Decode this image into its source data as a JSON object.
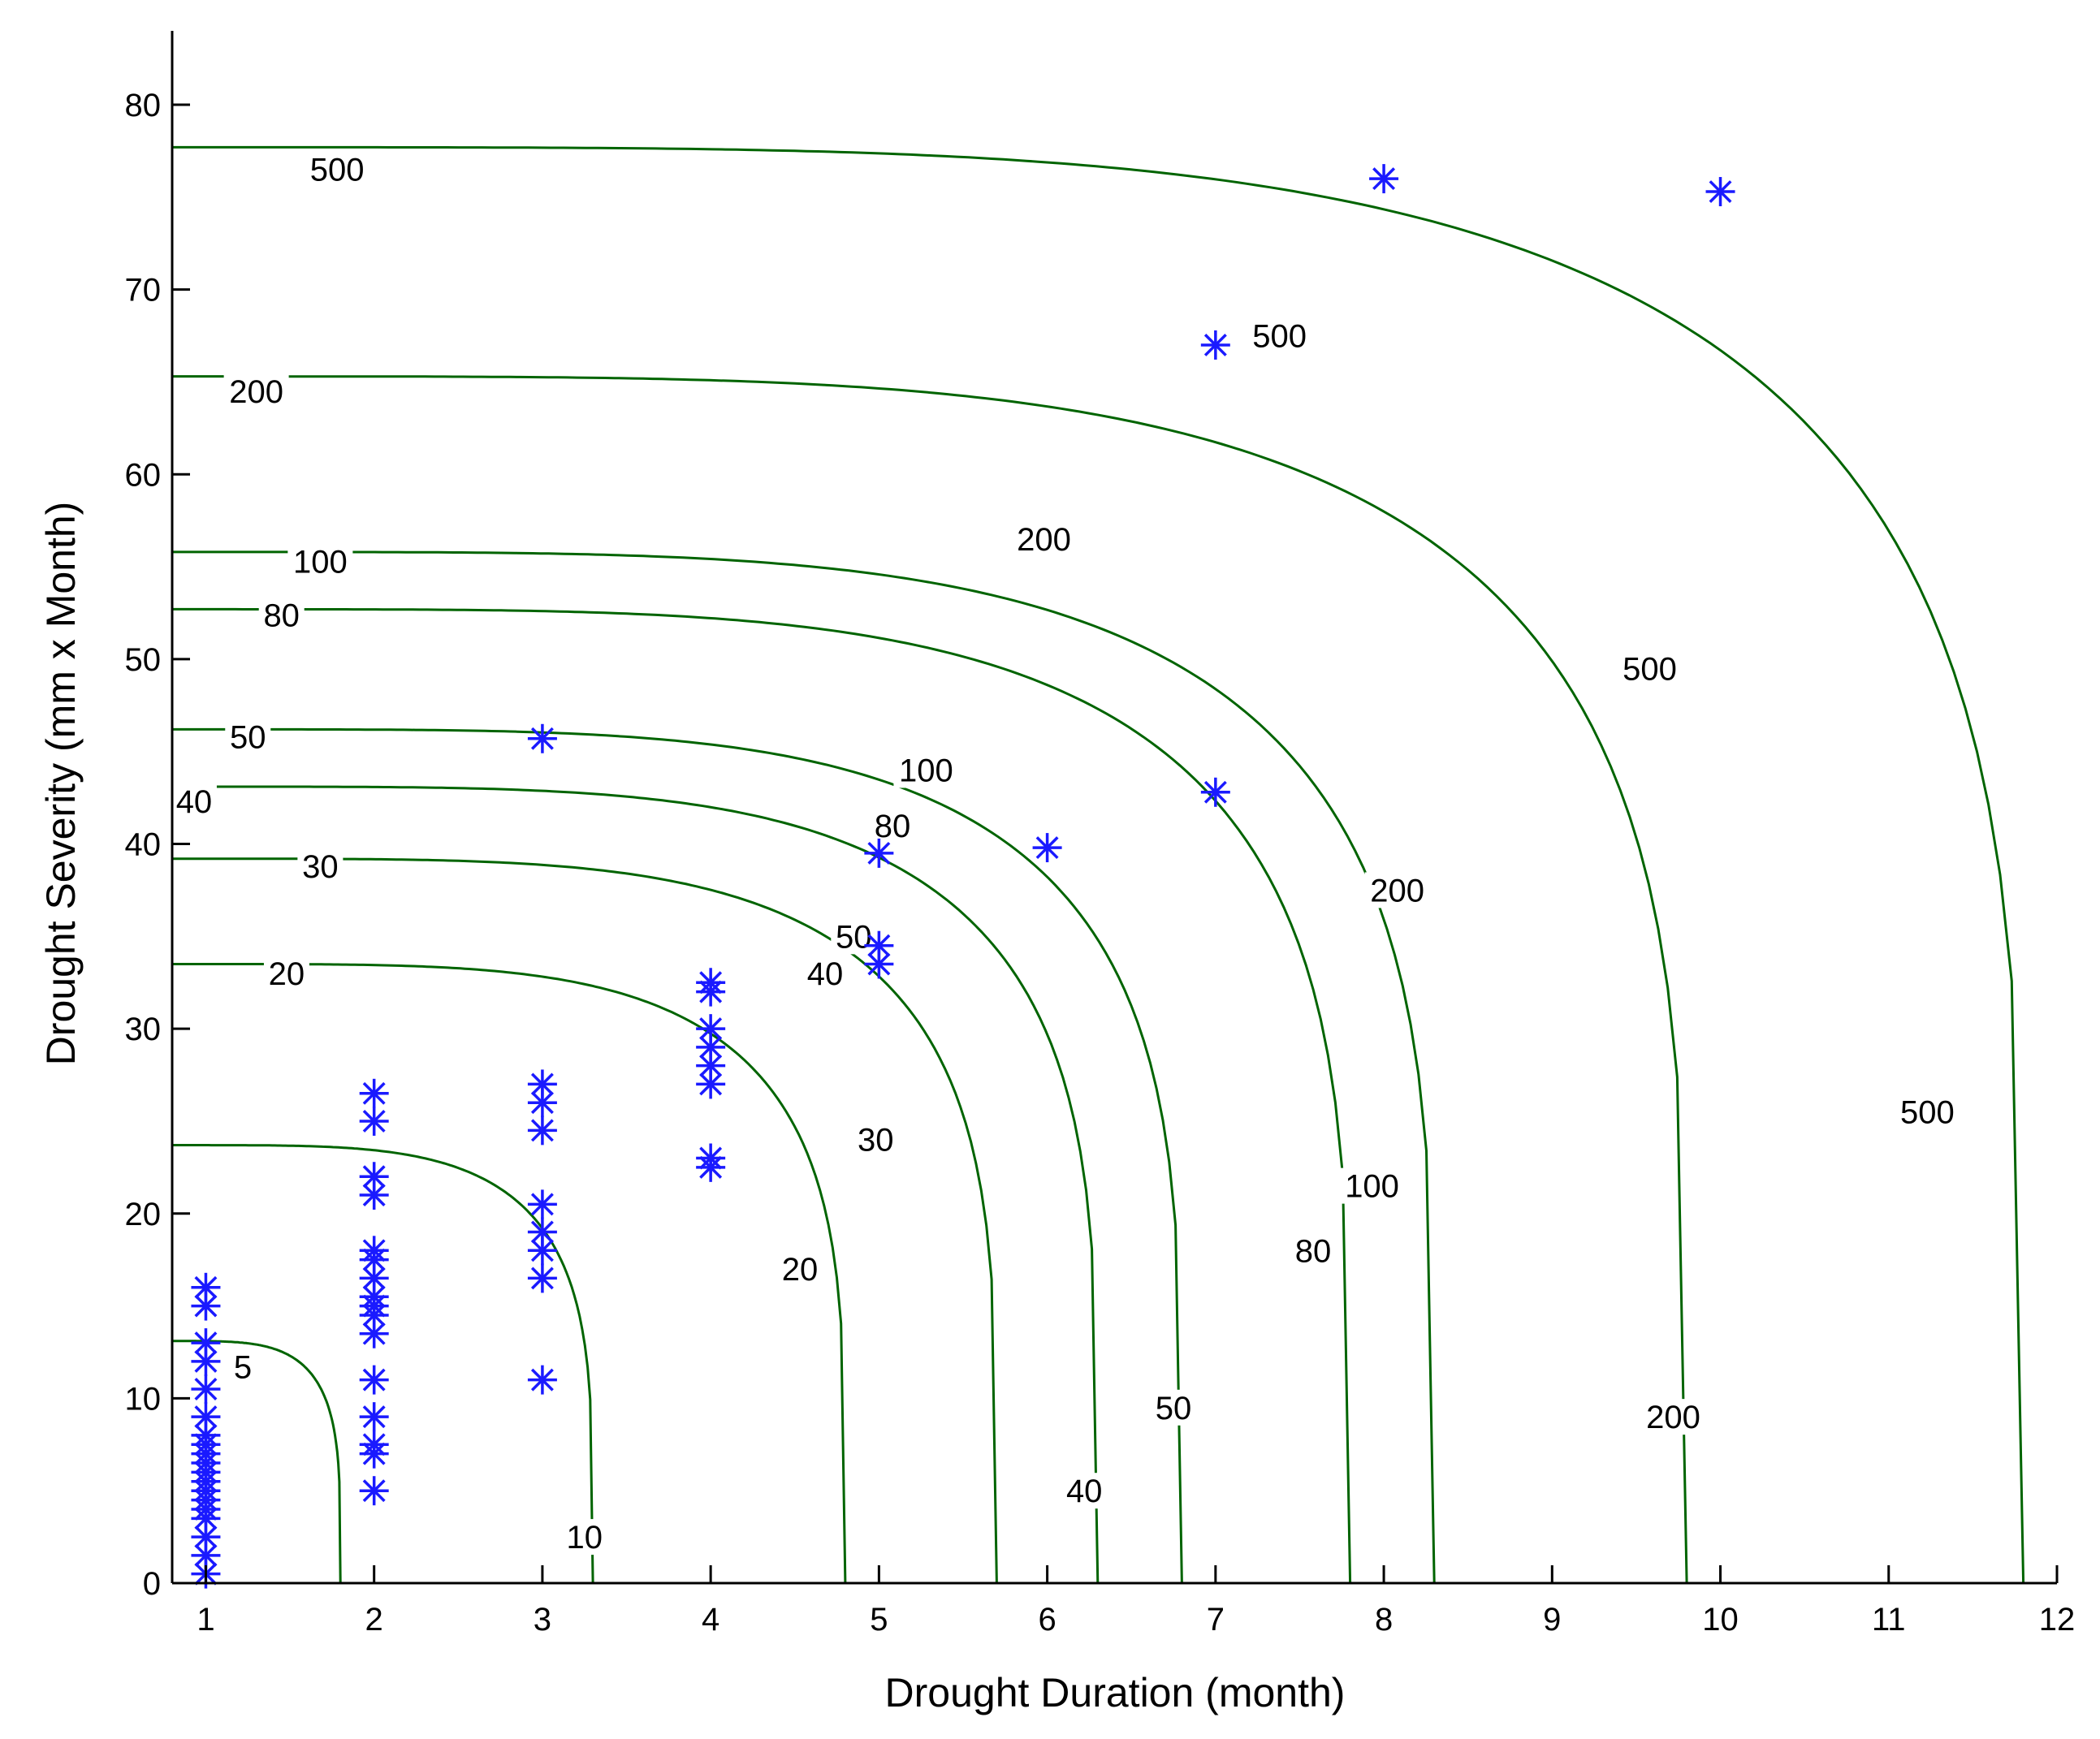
{
  "chart_data": {
    "type": "scatter",
    "xlabel": "Drought Duration  (month)",
    "ylabel": "Drought Severity  (mm x Month)",
    "xlim": [
      0.8,
      12
    ],
    "ylim": [
      0,
      84
    ],
    "xticks": [
      1,
      2,
      3,
      4,
      5,
      6,
      7,
      8,
      9,
      10,
      11,
      12
    ],
    "yticks": [
      0,
      10,
      20,
      30,
      40,
      50,
      60,
      70,
      80
    ],
    "grid": false,
    "colors": {
      "points": "#1a1aff",
      "contours": "#006400",
      "axes": "#000000"
    },
    "contours": [
      {
        "label": "5",
        "d0": 1.8,
        "s0": 13.1
      },
      {
        "label": "10",
        "d0": 3.3,
        "s0": 23.7
      },
      {
        "label": "20",
        "d0": 4.8,
        "s0": 33.5
      },
      {
        "label": "30",
        "d0": 5.7,
        "s0": 39.2
      },
      {
        "label": "40",
        "d0": 6.3,
        "s0": 43.1
      },
      {
        "label": "50",
        "d0": 6.8,
        "s0": 46.2
      },
      {
        "label": "80",
        "d0": 7.8,
        "s0": 52.7
      },
      {
        "label": "100",
        "d0": 8.3,
        "s0": 55.8
      },
      {
        "label": "200",
        "d0": 9.8,
        "s0": 65.3
      },
      {
        "label": "500",
        "d0": 11.8,
        "s0": 77.7
      }
    ],
    "contour_label_positions": [
      {
        "label": "5",
        "x": 1.22,
        "y": 11.7
      },
      {
        "label": "10",
        "x": 3.25,
        "y": 2.5
      },
      {
        "label": "20",
        "x": 4.53,
        "y": 17.0
      },
      {
        "label": "20",
        "x": 1.48,
        "y": 33.0
      },
      {
        "label": "30",
        "x": 4.98,
        "y": 24.0
      },
      {
        "label": "30",
        "x": 1.68,
        "y": 38.8
      },
      {
        "label": "40",
        "x": 6.22,
        "y": 5.0
      },
      {
        "label": "40",
        "x": 4.68,
        "y": 33.0
      },
      {
        "label": "40",
        "x": 0.93,
        "y": 42.3
      },
      {
        "label": "50",
        "x": 6.75,
        "y": 9.5
      },
      {
        "label": "50",
        "x": 4.85,
        "y": 35.0
      },
      {
        "label": "50",
        "x": 1.25,
        "y": 45.8
      },
      {
        "label": "80",
        "x": 7.58,
        "y": 18.0
      },
      {
        "label": "80",
        "x": 5.08,
        "y": 41.0
      },
      {
        "label": "80",
        "x": 1.45,
        "y": 52.4
      },
      {
        "label": "100",
        "x": 7.93,
        "y": 21.5
      },
      {
        "label": "100",
        "x": 5.28,
        "y": 44.0
      },
      {
        "label": "100",
        "x": 1.68,
        "y": 55.3
      },
      {
        "label": "200",
        "x": 9.72,
        "y": 9.0
      },
      {
        "label": "200",
        "x": 8.08,
        "y": 37.5
      },
      {
        "label": "200",
        "x": 5.98,
        "y": 56.5
      },
      {
        "label": "200",
        "x": 1.3,
        "y": 64.5
      },
      {
        "label": "500",
        "x": 11.23,
        "y": 25.5
      },
      {
        "label": "500",
        "x": 9.58,
        "y": 49.5
      },
      {
        "label": "500",
        "x": 7.38,
        "y": 67.5
      },
      {
        "label": "500",
        "x": 1.78,
        "y": 76.5
      }
    ],
    "points": [
      [
        1,
        0.5
      ],
      [
        1,
        1.5
      ],
      [
        1,
        2.5
      ],
      [
        1,
        3.5
      ],
      [
        1,
        4.0
      ],
      [
        1,
        4.5
      ],
      [
        1,
        5.0
      ],
      [
        1,
        5.5
      ],
      [
        1,
        6.0
      ],
      [
        1,
        6.5
      ],
      [
        1,
        7.0
      ],
      [
        1,
        7.5
      ],
      [
        1,
        8.0
      ],
      [
        1,
        9.0
      ],
      [
        1,
        10.5
      ],
      [
        1,
        12.0
      ],
      [
        1,
        13.0
      ],
      [
        1,
        15.0
      ],
      [
        1,
        16.0
      ],
      [
        2,
        5.0
      ],
      [
        2,
        7.0
      ],
      [
        2,
        7.5
      ],
      [
        2,
        9.0
      ],
      [
        2,
        11.0
      ],
      [
        2,
        13.5
      ],
      [
        2,
        14.5
      ],
      [
        2,
        15.0
      ],
      [
        2,
        15.5
      ],
      [
        2,
        16.5
      ],
      [
        2,
        17.5
      ],
      [
        2,
        18.0
      ],
      [
        2,
        21.0
      ],
      [
        2,
        22.0
      ],
      [
        2,
        25.0
      ],
      [
        2,
        26.5
      ],
      [
        3,
        11.0
      ],
      [
        3,
        16.5
      ],
      [
        3,
        18.0
      ],
      [
        3,
        19.0
      ],
      [
        3,
        20.5
      ],
      [
        3,
        24.5
      ],
      [
        3,
        26.0
      ],
      [
        3,
        27.0
      ],
      [
        4,
        22.5
      ],
      [
        4,
        23.0
      ],
      [
        4,
        27.0
      ],
      [
        4,
        28.0
      ],
      [
        4,
        29.0
      ],
      [
        4,
        30.0
      ],
      [
        4,
        32.0
      ],
      [
        4,
        32.5
      ],
      [
        5,
        33.5
      ],
      [
        5,
        34.5
      ],
      [
        5,
        39.5
      ],
      [
        3,
        45.7
      ],
      [
        6,
        39.8
      ],
      [
        7,
        42.8
      ],
      [
        7,
        67.0
      ],
      [
        8,
        76.0
      ],
      [
        10,
        75.3
      ]
    ]
  }
}
